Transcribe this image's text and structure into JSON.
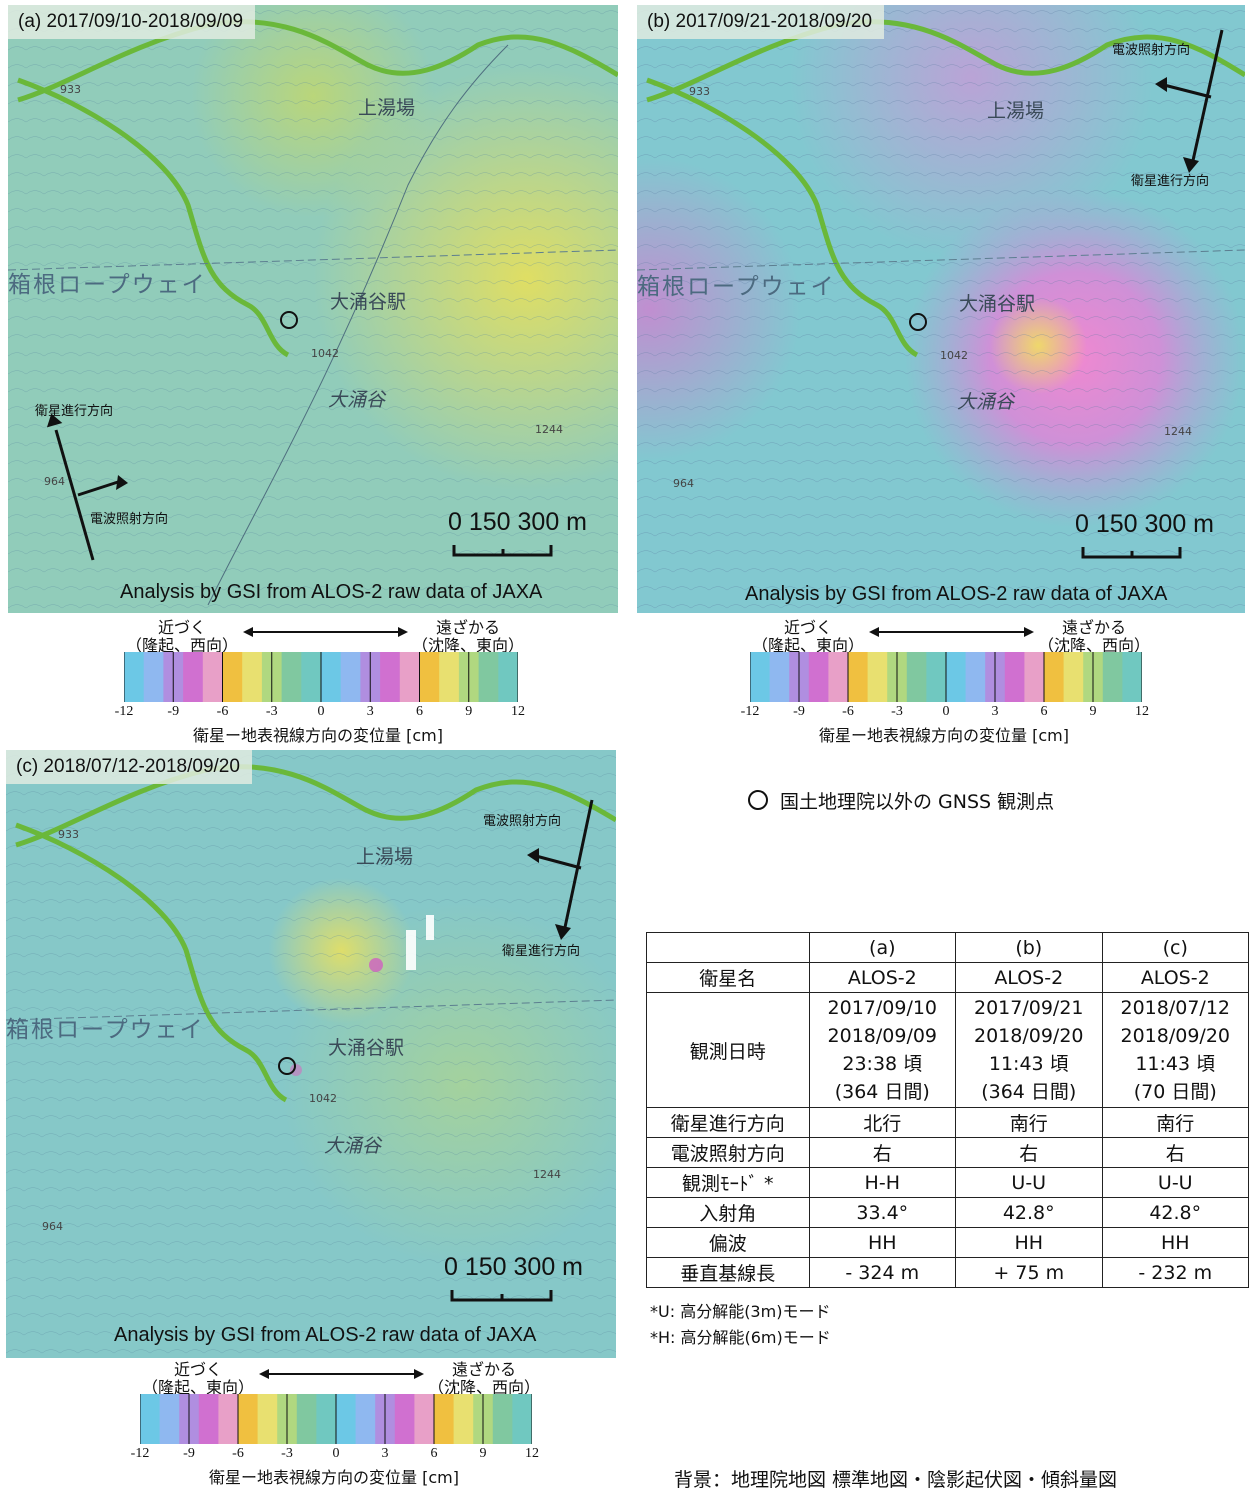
{
  "panels": [
    {
      "label": "(a) 2017/09/10-2018/09/09",
      "place_kamiyuba": "上湯場",
      "place_ropeway": "箱根ロープウェイ",
      "place_station": "大涌谷駅",
      "place_owakudani": "大涌谷",
      "elev_933": "933",
      "elev_1042": "1042",
      "elev_1244": "1244",
      "elev_964": "964",
      "sat_dir": "衛星進行方向",
      "radar_dir": "電波照射方向",
      "scale": "0  150 300  m",
      "attrib": "Analysis by GSI from ALOS-2 raw data of JAXA"
    },
    {
      "label": "(b) 2017/09/21-2018/09/20",
      "place_kamiyuba": "上湯場",
      "place_ropeway": "箱根ロープウェイ",
      "place_station": "大涌谷駅",
      "place_owakudani": "大涌谷",
      "elev_933": "933",
      "elev_1042": "1042",
      "elev_1244": "1244",
      "elev_964": "964",
      "sat_dir": "衛星進行方向",
      "radar_dir": "電波照射方向",
      "scale": "0  150 300  m",
      "attrib": "Analysis by GSI from ALOS-2 raw data of JAXA"
    },
    {
      "label": "(c) 2018/07/12-2018/09/20",
      "place_kamiyuba": "上湯場",
      "place_ropeway": "箱根ロープウェイ",
      "place_station": "大涌谷駅",
      "place_owakudani": "大涌谷",
      "elev_933": "933",
      "elev_1042": "1042",
      "elev_1244": "1244",
      "elev_964": "964",
      "sat_dir": "衛星進行方向",
      "radar_dir": "電波照射方向",
      "scale": "0  150 300  m",
      "attrib": "Analysis by GSI from ALOS-2 raw data of JAXA"
    }
  ],
  "legends": [
    {
      "near": "近づく",
      "near_sub": "（隆起、西向）",
      "far": "遠ざかる",
      "far_sub": "（沈降、東向）",
      "ticks": [
        "-12",
        "-9",
        "-6",
        "-3",
        "0",
        "3",
        "6",
        "9",
        "12"
      ],
      "caption": "衛星ー地表視線方向の変位量 [cm]"
    },
    {
      "near": "近づく",
      "near_sub": "（隆起、東向）",
      "far": "遠ざかる",
      "far_sub": "（沈降、西向）",
      "ticks": [
        "-12",
        "-9",
        "-6",
        "-3",
        "0",
        "3",
        "6",
        "9",
        "12"
      ],
      "caption": "衛星ー地表視線方向の変位量 [cm]"
    },
    {
      "near": "近づく",
      "near_sub": "（隆起、東向）",
      "far": "遠ざかる",
      "far_sub": "（沈降、西向）",
      "ticks": [
        "-12",
        "-9",
        "-6",
        "-3",
        "0",
        "3",
        "6",
        "9",
        "12"
      ],
      "caption": "衛星ー地表視線方向の変位量 [cm]"
    }
  ],
  "gnss_note": "国土地理院以外の GNSS 観測点",
  "table": {
    "headers": [
      "(a)",
      "(b)",
      "(c)"
    ],
    "rows": [
      {
        "label": "衛星名",
        "values": [
          "ALOS-2",
          "ALOS-2",
          "ALOS-2"
        ]
      },
      {
        "label": "観測日時",
        "values": [
          [
            "2017/09/10",
            "2018/09/09",
            "23:38 頃",
            "(364 日間)"
          ],
          [
            "2017/09/21",
            "2018/09/20",
            "11:43 頃",
            "(364 日間)"
          ],
          [
            "2018/07/12",
            "2018/09/20",
            "11:43 頃",
            "(70 日間)"
          ]
        ]
      },
      {
        "label": "衛星進行方向",
        "values": [
          "北行",
          "南行",
          "南行"
        ]
      },
      {
        "label": "電波照射方向",
        "values": [
          "右",
          "右",
          "右"
        ]
      },
      {
        "label": "観測ﾓｰﾄﾞ *",
        "values": [
          "H-H",
          "U-U",
          "U-U"
        ]
      },
      {
        "label": "入射角",
        "values": [
          "33.4°",
          "42.8°",
          "42.8°"
        ]
      },
      {
        "label": "偏波",
        "values": [
          "HH",
          "HH",
          "HH"
        ]
      },
      {
        "label": "垂直基線長",
        "values": [
          "- 324 m",
          "+ 75 m",
          "- 232 m"
        ]
      }
    ]
  },
  "notes": [
    "*U: 高分解能(3m)モード",
    "*H: 高分解能(6m)モード"
  ],
  "background": "背景：地理院地図 標準地図・陰影起伏図・傾斜量図",
  "colors": {
    "road": "#7fbf3a",
    "insar_base": "#7cc6c4",
    "uplift_pink": "#e36ad0"
  }
}
